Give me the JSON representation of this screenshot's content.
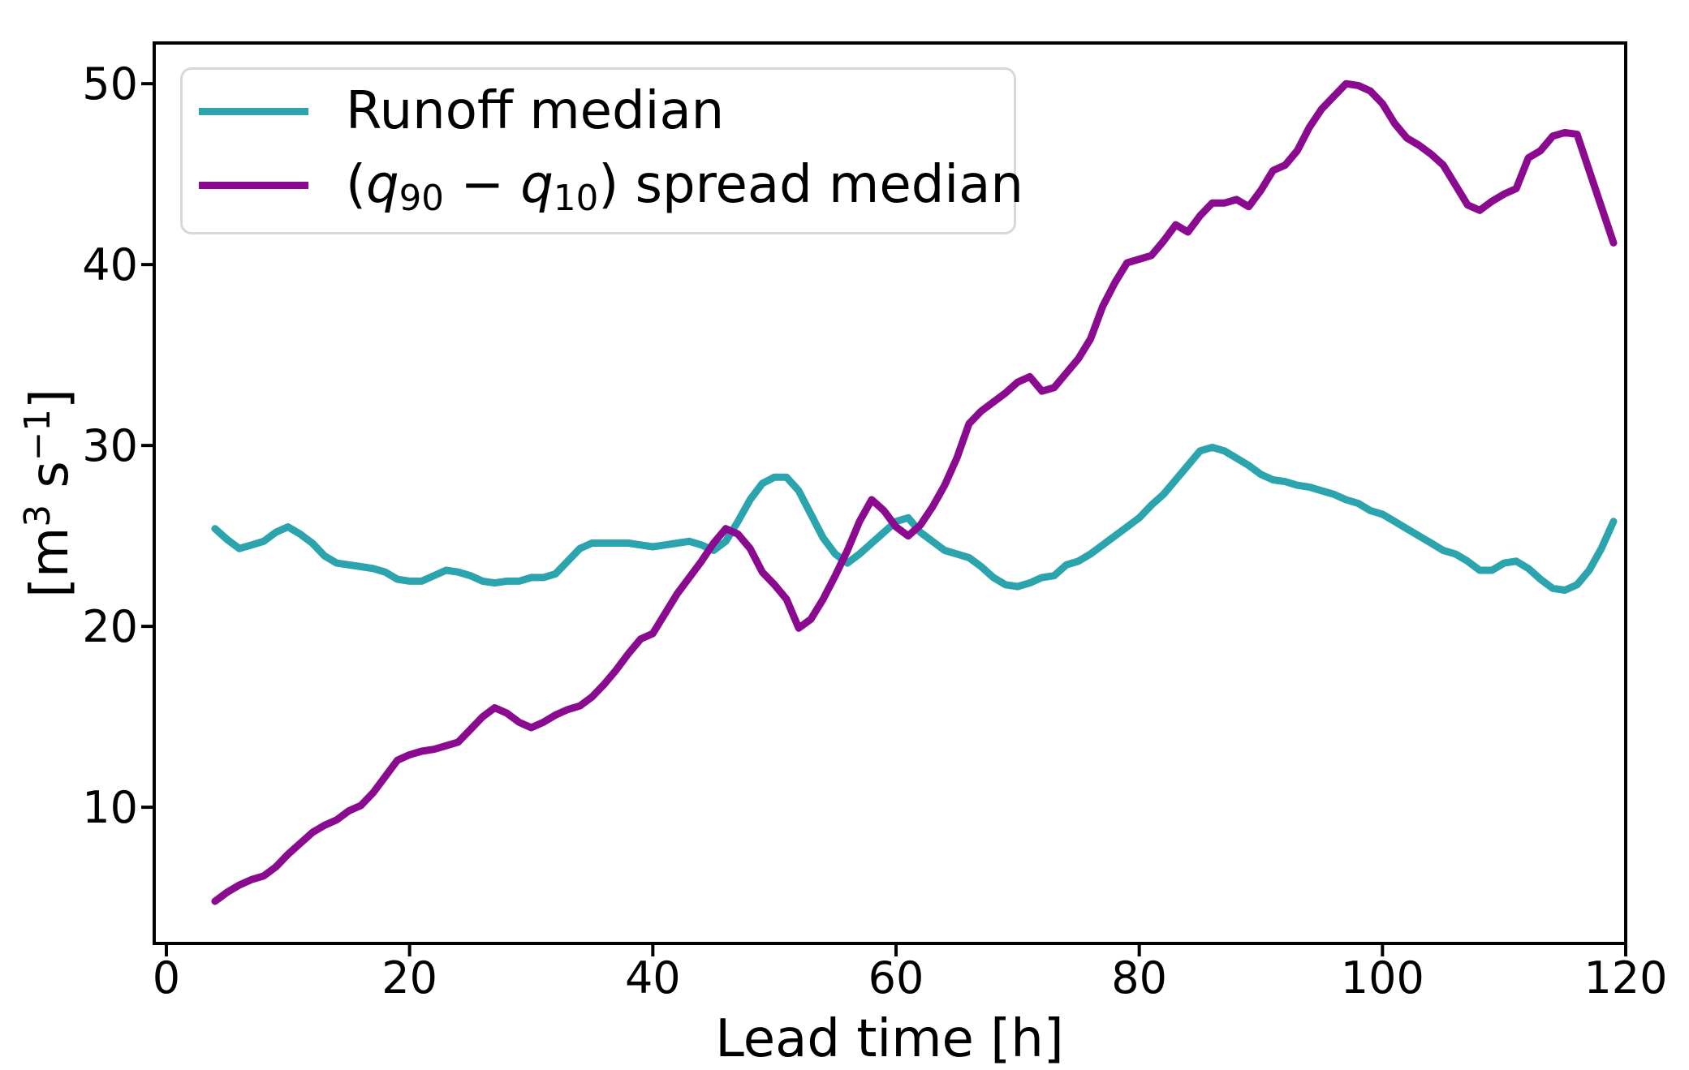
{
  "chart_data": {
    "type": "line",
    "title": "",
    "xlabel": "Lead time [h]",
    "ylabel": "[m3 s-1]",
    "xlim": [
      -1,
      120
    ],
    "ylim": [
      2.47,
      52.25
    ],
    "x_ticks": [
      0,
      20,
      40,
      60,
      80,
      100,
      120
    ],
    "y_ticks": [
      10,
      20,
      30,
      40,
      50
    ],
    "grid": false,
    "legend_position": "upper left",
    "x": [
      4,
      5,
      6,
      7,
      8,
      9,
      10,
      11,
      12,
      13,
      14,
      15,
      16,
      17,
      18,
      19,
      20,
      21,
      22,
      23,
      24,
      25,
      26,
      27,
      28,
      29,
      30,
      31,
      32,
      33,
      34,
      35,
      36,
      37,
      38,
      39,
      40,
      41,
      42,
      43,
      44,
      45,
      46,
      47,
      48,
      49,
      50,
      51,
      52,
      53,
      54,
      55,
      56,
      57,
      58,
      59,
      60,
      61,
      62,
      63,
      64,
      65,
      66,
      67,
      68,
      69,
      70,
      71,
      72,
      73,
      74,
      75,
      76,
      77,
      78,
      79,
      80,
      81,
      82,
      83,
      84,
      85,
      86,
      87,
      88,
      89,
      90,
      91,
      92,
      93,
      94,
      95,
      96,
      97,
      98,
      99,
      100,
      101,
      102,
      103,
      104,
      105,
      106,
      107,
      108,
      109,
      110,
      111,
      112,
      113,
      114,
      115,
      116,
      117,
      118,
      119
    ],
    "series": [
      {
        "name": "Runoff median",
        "color": "#2ba4ae",
        "values": [
          25.4,
          24.8,
          24.3,
          24.5,
          24.7,
          25.2,
          25.5,
          25.1,
          24.6,
          23.9,
          23.5,
          23.4,
          23.3,
          23.2,
          23.0,
          22.6,
          22.5,
          22.5,
          22.8,
          23.1,
          23.0,
          22.8,
          22.5,
          22.4,
          22.5,
          22.5,
          22.7,
          22.7,
          22.9,
          23.6,
          24.3,
          24.6,
          24.6,
          24.6,
          24.6,
          24.5,
          24.4,
          24.5,
          24.6,
          24.7,
          24.5,
          24.2,
          24.7,
          25.8,
          27.0,
          27.9,
          28.25,
          28.25,
          27.5,
          26.2,
          24.9,
          24.0,
          23.5,
          24.0,
          24.6,
          25.2,
          25.8,
          26.0,
          25.2,
          24.7,
          24.2,
          24.0,
          23.8,
          23.3,
          22.7,
          22.3,
          22.2,
          22.4,
          22.7,
          22.8,
          23.4,
          23.6,
          24.0,
          24.5,
          25.0,
          25.5,
          26.0,
          26.7,
          27.3,
          28.1,
          28.9,
          29.7,
          29.9,
          29.7,
          29.3,
          28.9,
          28.4,
          28.1,
          28.0,
          27.8,
          27.7,
          27.5,
          27.3,
          27.0,
          26.8,
          26.4,
          26.2,
          25.8,
          25.4,
          25.0,
          24.6,
          24.2,
          24.0,
          23.6,
          23.1,
          23.1,
          23.5,
          23.6,
          23.2,
          22.6,
          22.1,
          22.0,
          22.3,
          23.1,
          24.3,
          25.8
        ]
      },
      {
        "name": "(q90 − q10) spread median",
        "color": "#8a0a90",
        "values": [
          4.8,
          5.3,
          5.7,
          6.0,
          6.2,
          6.7,
          7.4,
          8.0,
          8.6,
          9.0,
          9.3,
          9.8,
          10.1,
          10.8,
          11.7,
          12.6,
          12.9,
          13.1,
          13.2,
          13.4,
          13.6,
          14.3,
          15.0,
          15.5,
          15.2,
          14.7,
          14.4,
          14.7,
          15.1,
          15.4,
          15.6,
          16.1,
          16.8,
          17.6,
          18.5,
          19.3,
          19.6,
          20.7,
          21.8,
          22.7,
          23.6,
          24.6,
          25.4,
          25.1,
          24.3,
          23.0,
          22.3,
          21.5,
          19.9,
          20.4,
          21.5,
          22.8,
          24.2,
          25.8,
          27.0,
          26.4,
          25.5,
          25.0,
          25.6,
          26.6,
          27.8,
          29.3,
          31.2,
          31.9,
          32.4,
          32.9,
          33.5,
          33.8,
          33.0,
          33.2,
          34.0,
          34.8,
          35.9,
          37.7,
          39.0,
          40.1,
          40.3,
          40.5,
          41.3,
          42.2,
          41.8,
          42.7,
          43.4,
          43.4,
          43.6,
          43.2,
          44.1,
          45.2,
          45.5,
          46.3,
          47.6,
          48.6,
          49.3,
          50.0,
          49.9,
          49.6,
          48.9,
          47.8,
          47.0,
          46.6,
          46.1,
          45.5,
          44.4,
          43.3,
          43.0,
          43.5,
          43.9,
          44.2,
          45.9,
          46.3,
          47.1,
          47.3,
          47.2,
          45.2,
          43.2,
          41.2
        ]
      }
    ]
  },
  "axes": {
    "xlabel": "Lead time [h]",
    "ylabel_parts": {
      "p1": "[m",
      "sup1": "3",
      "p2": " s",
      "sup2": "−1",
      "p3": "]"
    }
  },
  "legend": {
    "entry1": {
      "label": "Runoff median"
    },
    "entry2": {
      "open": "(",
      "q1": "q",
      "sub1": "90",
      "minus": " − ",
      "q2": "q",
      "sub2": "10",
      "rest": ") spread median"
    }
  },
  "colors": {
    "runoff_line": "#2ba4ae",
    "spread_line": "#8a0a90",
    "spine": "#000000",
    "legend_border": "#d8d8d8",
    "background": "#ffffff"
  }
}
